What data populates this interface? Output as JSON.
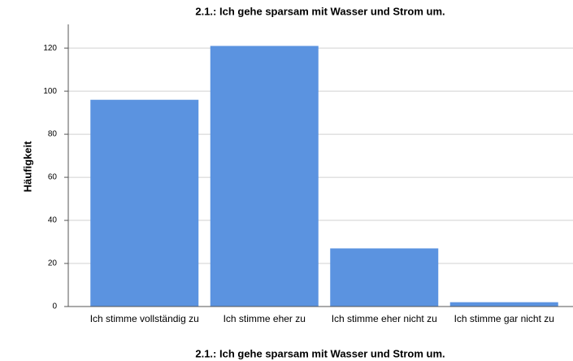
{
  "chart_data": {
    "type": "bar",
    "title": "2.1.: Ich gehe sparsam mit Wasser und Strom um.",
    "x_label": "2.1.: Ich gehe sparsam mit Wasser und Strom um.",
    "y_label": "Häufigkeit",
    "categories": [
      "Ich stimme vollständig zu",
      "Ich stimme eher zu",
      "Ich stimme eher nicht zu",
      "Ich stimme gar nicht zu"
    ],
    "values": [
      96,
      121,
      27,
      2
    ],
    "color": "#5b93e0",
    "ylim": [
      0,
      131
    ],
    "yticks": [
      0,
      20,
      40,
      60,
      80,
      100,
      120
    ],
    "grid": true
  }
}
